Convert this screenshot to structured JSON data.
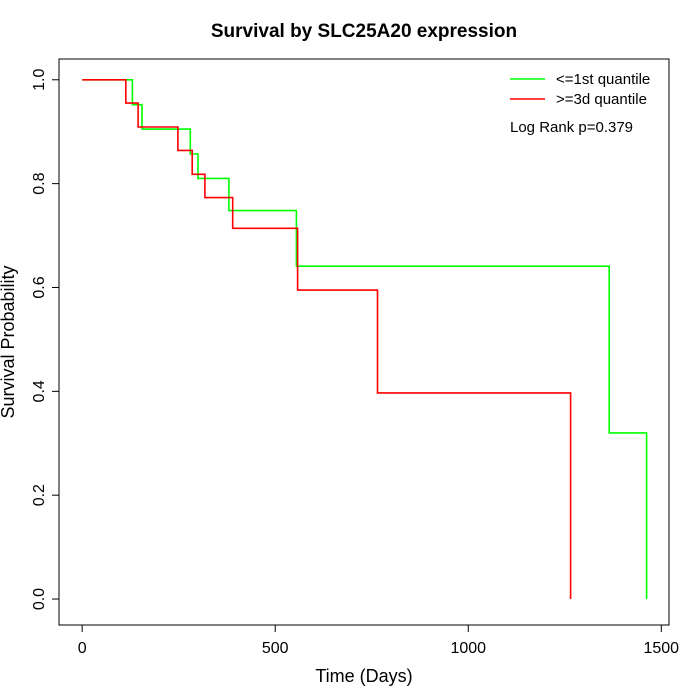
{
  "chart_data": {
    "type": "line",
    "title": "Survival by SLC25A20 expression",
    "xlabel": "Time (Days)",
    "ylabel": "Survival Probability",
    "xlim": [
      -60,
      1520
    ],
    "ylim": [
      -0.05,
      1.04
    ],
    "x_ticks": [
      0,
      500,
      1000,
      1500
    ],
    "y_ticks": [
      0.0,
      0.2,
      0.4,
      0.6,
      0.8,
      1.0
    ],
    "x_tick_labels": [
      "0",
      "500",
      "1000",
      "1500"
    ],
    "y_tick_labels": [
      "0.0",
      "0.2",
      "0.4",
      "0.6",
      "0.8",
      "1.0"
    ],
    "legend_position": "top-right",
    "annotation": "Log Rank p=0.379",
    "series": [
      {
        "name": "<=1st quantile",
        "color": "#00ff00",
        "step_points": [
          [
            0,
            1.0
          ],
          [
            130,
            1.0
          ],
          [
            130,
            0.952
          ],
          [
            155,
            0.952
          ],
          [
            155,
            0.905
          ],
          [
            280,
            0.905
          ],
          [
            280,
            0.857
          ],
          [
            300,
            0.857
          ],
          [
            300,
            0.81
          ],
          [
            380,
            0.81
          ],
          [
            380,
            0.748
          ],
          [
            555,
            0.748
          ],
          [
            555,
            0.641
          ],
          [
            1365,
            0.641
          ],
          [
            1365,
            0.32
          ],
          [
            1462,
            0.32
          ],
          [
            1462,
            0.0
          ]
        ]
      },
      {
        "name": ">=3d quantile",
        "color": "#ff0000",
        "step_points": [
          [
            0,
            1.0
          ],
          [
            113,
            1.0
          ],
          [
            113,
            0.955
          ],
          [
            145,
            0.955
          ],
          [
            145,
            0.909
          ],
          [
            248,
            0.909
          ],
          [
            248,
            0.864
          ],
          [
            285,
            0.864
          ],
          [
            285,
            0.818
          ],
          [
            318,
            0.818
          ],
          [
            318,
            0.773
          ],
          [
            390,
            0.773
          ],
          [
            390,
            0.714
          ],
          [
            558,
            0.714
          ],
          [
            558,
            0.595
          ],
          [
            765,
            0.595
          ],
          [
            765,
            0.397
          ],
          [
            1265,
            0.397
          ],
          [
            1265,
            0.0
          ]
        ]
      }
    ]
  }
}
